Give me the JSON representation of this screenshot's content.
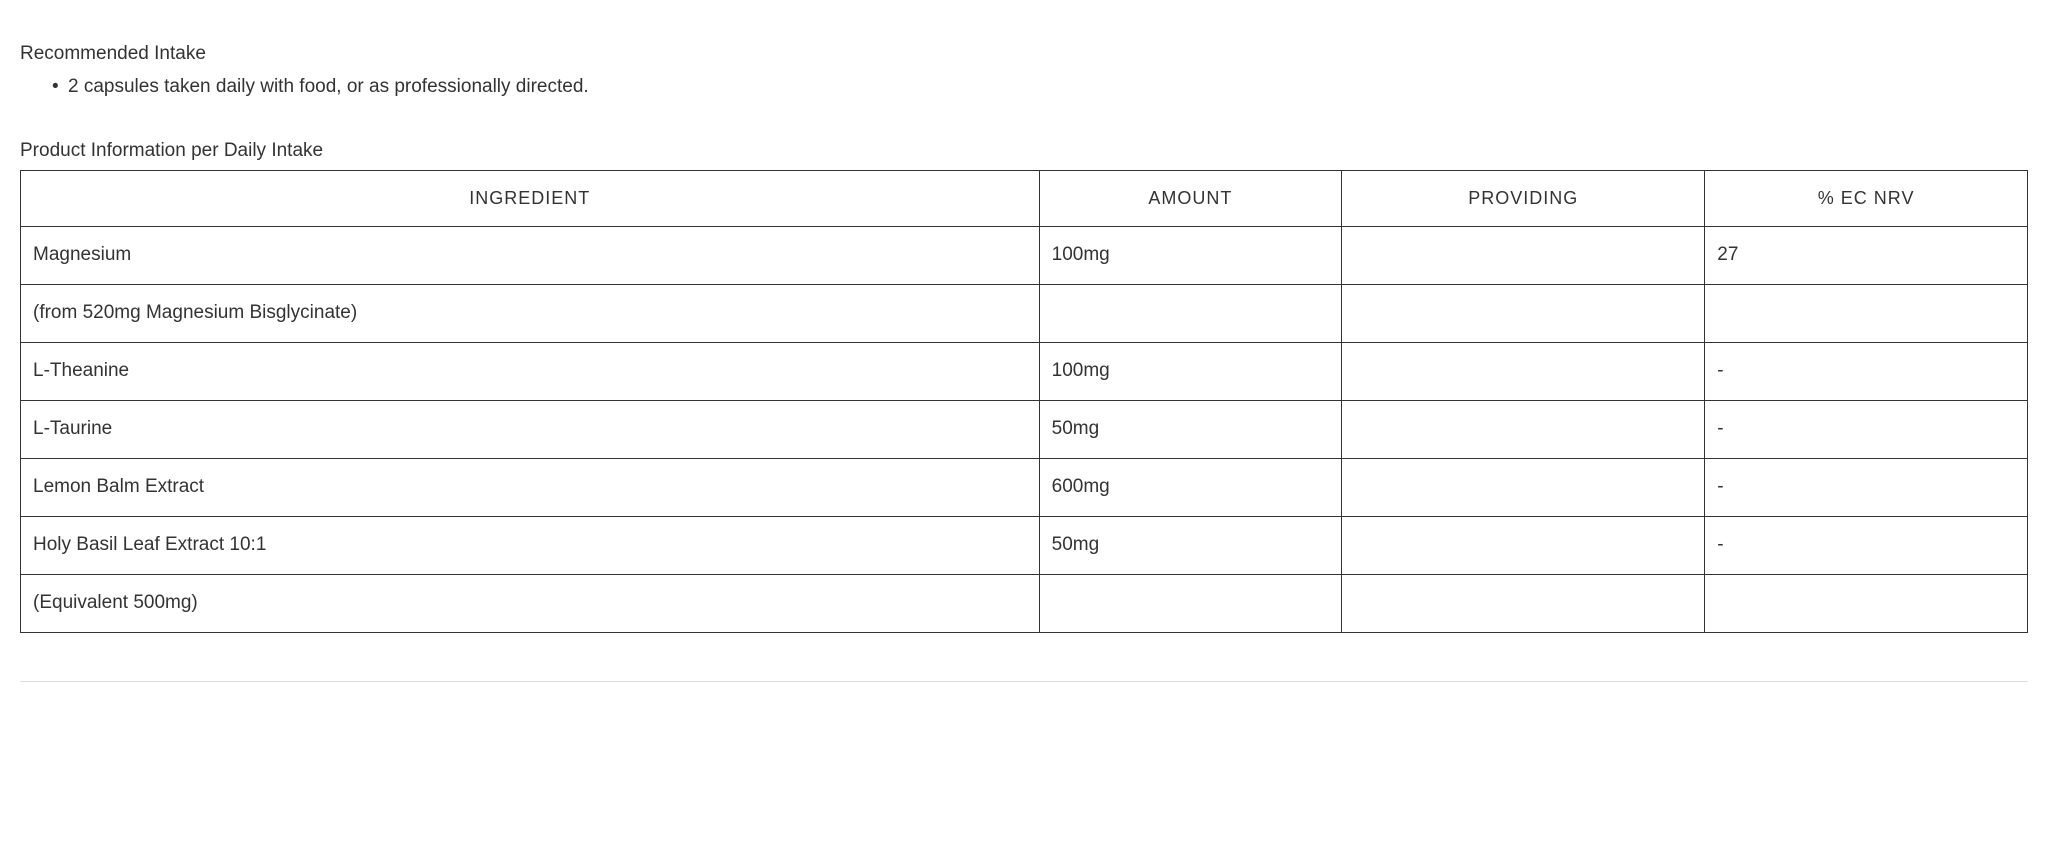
{
  "intake": {
    "heading": "Recommended Intake",
    "bullet": "2 capsules taken daily with food, or as professionally directed."
  },
  "product_info": {
    "heading": "Product Information per Daily Intake",
    "columns": {
      "ingredient": "INGREDIENT",
      "amount": "AMOUNT",
      "providing": "PROVIDING",
      "nrv": "% EC NRV"
    },
    "rows": [
      {
        "ingredient": "Magnesium",
        "amount": "100mg",
        "providing": "",
        "nrv": "27"
      },
      {
        "ingredient": "(from 520mg Magnesium Bisglycinate)",
        "amount": "",
        "providing": "",
        "nrv": ""
      },
      {
        "ingredient": "L-Theanine",
        "amount": "100mg",
        "providing": "",
        "nrv": "-"
      },
      {
        "ingredient": "L-Taurine",
        "amount": "50mg",
        "providing": "",
        "nrv": "-"
      },
      {
        "ingredient": "Lemon Balm Extract",
        "amount": "600mg",
        "providing": "",
        "nrv": "-"
      },
      {
        "ingredient": "Holy Basil Leaf Extract 10:1",
        "amount": "50mg",
        "providing": "",
        "nrv": "-"
      },
      {
        "ingredient": "(Equivalent 500mg)",
        "amount": "",
        "providing": "",
        "nrv": ""
      }
    ]
  },
  "style": {
    "text_color": "#333333",
    "border_color": "#333333",
    "background_color": "#ffffff",
    "divider_color": "#dddddd",
    "body_fontsize": 19,
    "header_fontsize": 18,
    "header_letter_spacing": 1
  }
}
